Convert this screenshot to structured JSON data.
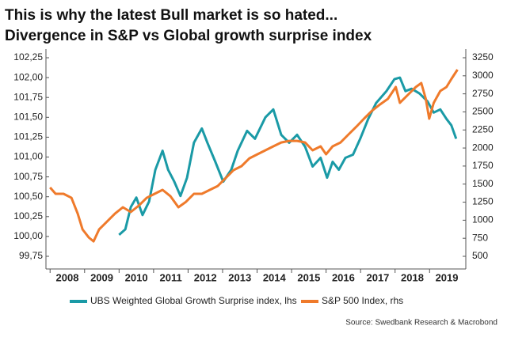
{
  "chart_data": {
    "type": "line",
    "title": "This is why the latest Bull market is so hated...",
    "subtitle": "Divergence in S&P vs Global growth surprise index",
    "source": "Source: Swedbank Research & Macrobond",
    "xlim": [
      2007.88,
      2020.05
    ],
    "xticks": [
      2008,
      2009,
      2010,
      2011,
      2012,
      2013,
      2014,
      2015,
      2016,
      2017,
      2018,
      2019
    ],
    "ylim": [
      99.75,
      102.25
    ],
    "yticks": [
      {
        "value": 99.75,
        "label": "99,75"
      },
      {
        "value": 100,
        "label": "100,00"
      },
      {
        "value": 100.25,
        "label": "100,25"
      },
      {
        "value": 100.5,
        "label": "100,50"
      },
      {
        "value": 100.75,
        "label": "100,75"
      },
      {
        "value": 101,
        "label": "101,00"
      },
      {
        "value": 101.25,
        "label": "101,25"
      },
      {
        "value": 101.5,
        "label": "101,50"
      },
      {
        "value": 101.75,
        "label": "101,75"
      },
      {
        "value": 102,
        "label": "102,00"
      },
      {
        "value": 102.25,
        "label": "102,25"
      }
    ],
    "y2lim": [
      500,
      3250
    ],
    "y2ticks": [
      500,
      750,
      1000,
      1250,
      1500,
      1750,
      2000,
      2250,
      2500,
      2750,
      3000,
      3250
    ],
    "legend": "bottom",
    "series": [
      {
        "name": "UBS Weighted Global Growth Surprise index, lhs",
        "color": "#1a9aa6",
        "x": [
          2010.0,
          2010.18,
          2010.34,
          2010.5,
          2010.68,
          2010.87,
          2011.05,
          2011.26,
          2011.42,
          2011.6,
          2011.78,
          2011.97,
          2012.17,
          2012.4,
          2012.56,
          2012.79,
          2013.02,
          2013.25,
          2013.44,
          2013.71,
          2013.94,
          2014.24,
          2014.47,
          2014.7,
          2014.93,
          2015.16,
          2015.39,
          2015.61,
          2015.84,
          2016.03,
          2016.19,
          2016.37,
          2016.56,
          2016.78,
          2016.99,
          2017.22,
          2017.45,
          2017.75,
          2017.98,
          2018.14,
          2018.3,
          2018.48,
          2018.71,
          2018.94,
          2019.12,
          2019.31,
          2019.49,
          2019.63,
          2019.77
        ],
        "values": [
          100.02,
          100.09,
          100.37,
          100.49,
          100.27,
          100.44,
          100.84,
          101.08,
          100.84,
          100.69,
          100.51,
          100.74,
          101.18,
          101.36,
          101.18,
          100.94,
          100.69,
          100.84,
          101.08,
          101.33,
          101.23,
          101.5,
          101.6,
          101.28,
          101.18,
          101.28,
          101.13,
          100.88,
          100.99,
          100.74,
          100.94,
          100.84,
          100.99,
          101.03,
          101.23,
          101.48,
          101.68,
          101.83,
          101.98,
          102.0,
          101.83,
          101.86,
          101.8,
          101.7,
          101.56,
          101.6,
          101.48,
          101.4,
          101.23
        ]
      },
      {
        "name": "S&P 500 Index, rhs",
        "color": "#ef7a2b",
        "axis": "y2",
        "x": [
          2008.0,
          2008.16,
          2008.39,
          2008.62,
          2008.8,
          2008.94,
          2009.12,
          2009.26,
          2009.42,
          2009.65,
          2009.88,
          2010.11,
          2010.34,
          2010.57,
          2010.8,
          2011.03,
          2011.26,
          2011.49,
          2011.72,
          2011.94,
          2012.17,
          2012.4,
          2012.63,
          2012.86,
          2013.09,
          2013.32,
          2013.55,
          2013.78,
          2014.01,
          2014.24,
          2014.47,
          2014.7,
          2014.93,
          2015.16,
          2015.39,
          2015.61,
          2015.84,
          2016.0,
          2016.19,
          2016.42,
          2016.65,
          2016.88,
          2017.1,
          2017.33,
          2017.56,
          2017.79,
          2018.02,
          2018.14,
          2018.37,
          2018.6,
          2018.76,
          2018.89,
          2018.99,
          2019.12,
          2019.31,
          2019.49,
          2019.63,
          2019.81
        ],
        "values": [
          1453,
          1365,
          1365,
          1310,
          1091,
          872,
          762,
          707,
          872,
          981,
          1091,
          1179,
          1113,
          1201,
          1310,
          1365,
          1420,
          1332,
          1179,
          1255,
          1365,
          1365,
          1420,
          1474,
          1584,
          1694,
          1749,
          1858,
          1913,
          1968,
          2023,
          2077,
          2099,
          2099,
          2077,
          1968,
          2023,
          1913,
          2023,
          2077,
          2187,
          2296,
          2406,
          2515,
          2603,
          2680,
          2845,
          2625,
          2735,
          2845,
          2899,
          2680,
          2406,
          2625,
          2790,
          2845,
          2954,
          3086
        ]
      }
    ]
  }
}
